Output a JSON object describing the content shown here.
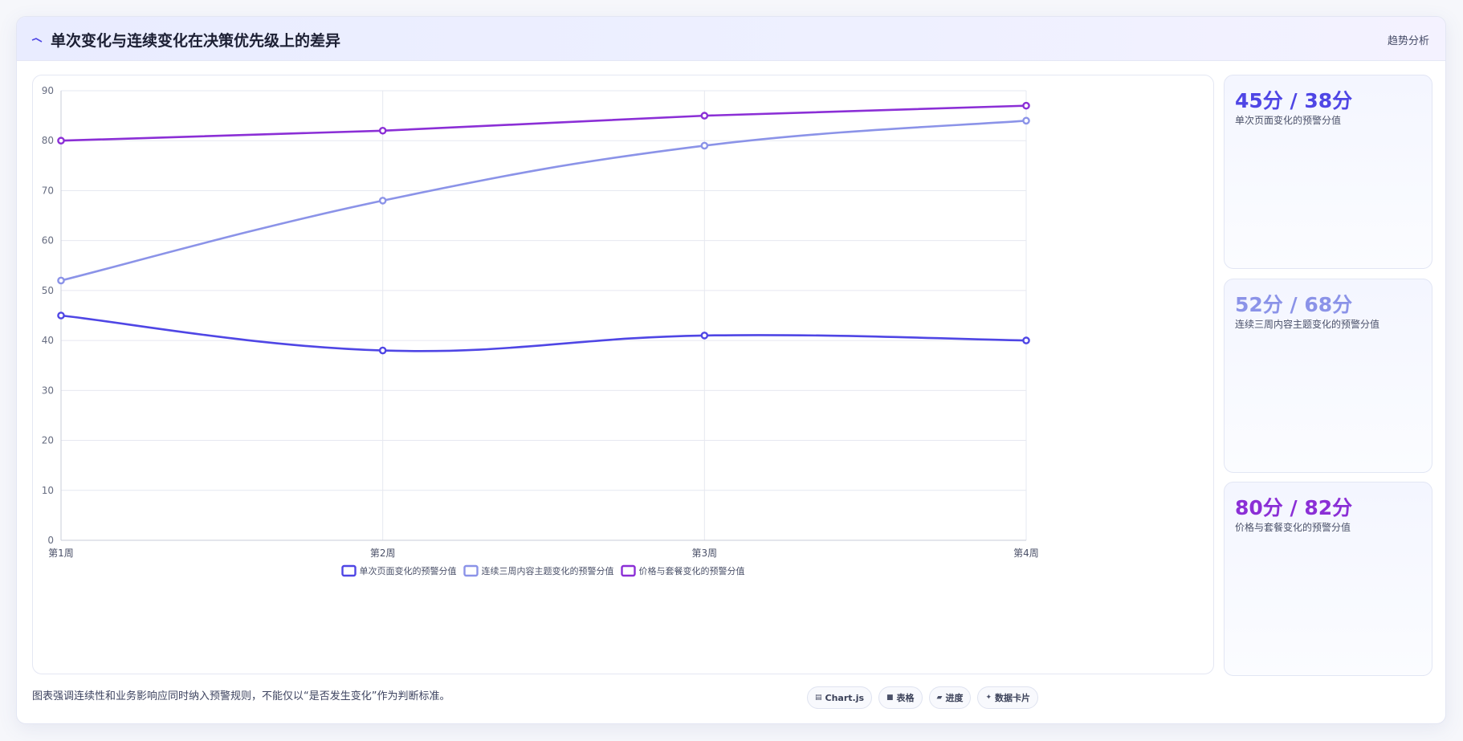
{
  "header": {
    "title": "单次变化与连续变化在决策优先级上的差异",
    "tag": "趋势分析"
  },
  "colors": {
    "series1": "#4f46e5",
    "series2": "#8b93e8",
    "series3": "#8b2fd6"
  },
  "chart_data": {
    "type": "line",
    "categories": [
      "第1周",
      "第2周",
      "第3周",
      "第4周"
    ],
    "series": [
      {
        "name": "单次页面变化的预警分值",
        "values": [
          45,
          38,
          41,
          40
        ]
      },
      {
        "name": "连续三周内容主题变化的预警分值",
        "values": [
          52,
          68,
          79,
          84
        ]
      },
      {
        "name": "价格与套餐变化的预警分值",
        "values": [
          80,
          82,
          85,
          87
        ]
      }
    ],
    "ylim": [
      0,
      90
    ],
    "yticks": [
      0,
      10,
      20,
      30,
      40,
      50,
      60,
      70,
      80,
      90
    ],
    "grid": true,
    "legend_position": "bottom"
  },
  "side_cards": [
    {
      "value": "45分 / 38分",
      "label": "单次页面变化的预警分值",
      "color": "#4f46e5"
    },
    {
      "value": "52分 / 68分",
      "label": "连续三周内容主题变化的预警分值",
      "color": "#8b93e8"
    },
    {
      "value": "80分 / 82分",
      "label": "价格与套餐变化的预警分值",
      "color": "#8b2fd6"
    }
  ],
  "footnote": "图表强调连续性和业务影响应同时纳入预警规则，不能仅以“是否发生变化”作为判断标准。",
  "pills": [
    {
      "icon": "chart-icon",
      "glyph": "▤",
      "label": "Chart.js"
    },
    {
      "icon": "table-icon",
      "glyph": "■",
      "label": "表格"
    },
    {
      "icon": "progress-icon",
      "glyph": "▰",
      "label": "进度"
    },
    {
      "icon": "sparkle-icon",
      "glyph": "✦",
      "label": "数据卡片"
    }
  ]
}
